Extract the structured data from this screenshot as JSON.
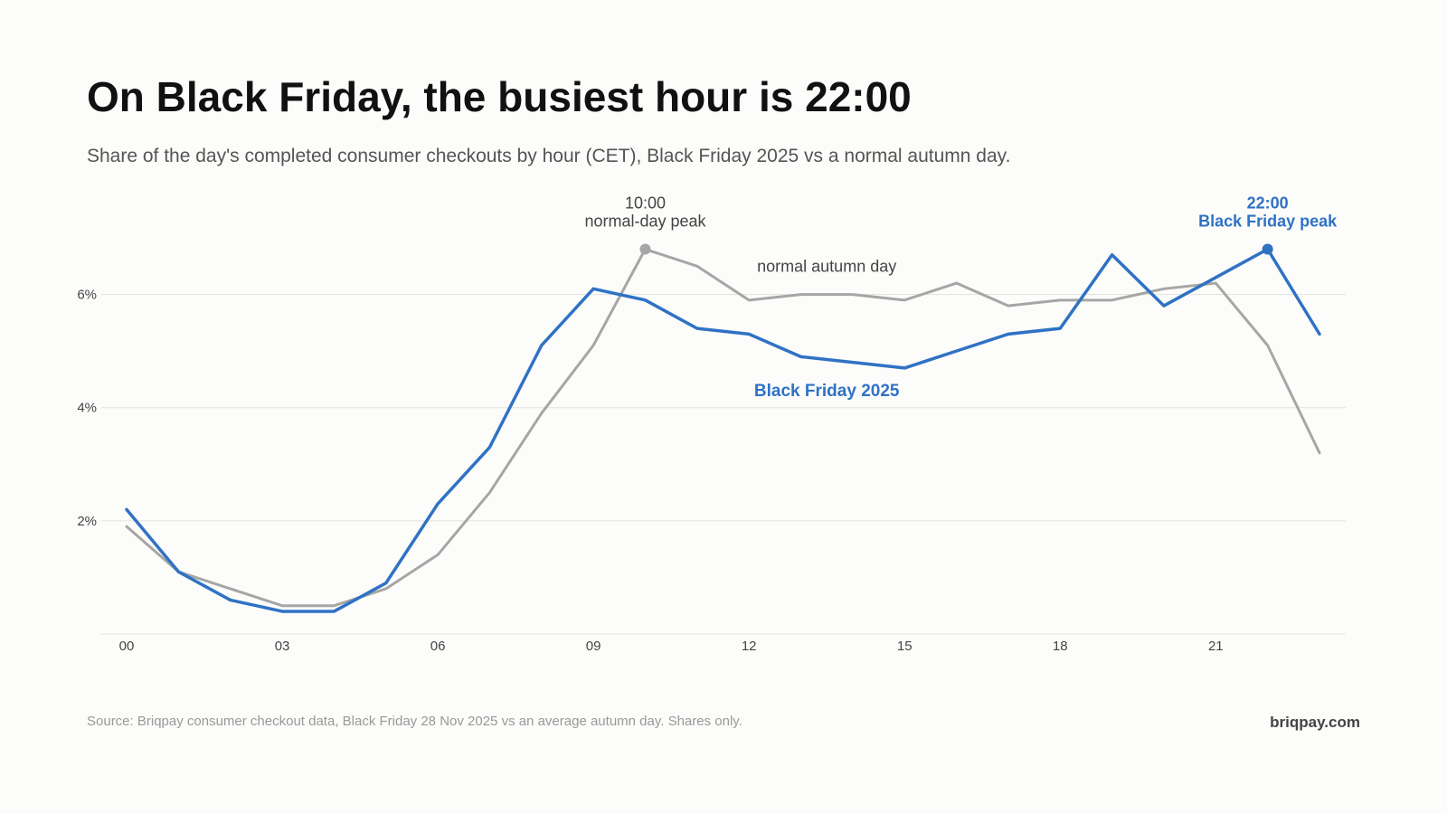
{
  "header": {
    "title": "On Black Friday, the busiest hour is 22:00",
    "subtitle": "Share of the day's completed consumer checkouts by hour (CET), Black Friday 2025 vs a normal autumn day."
  },
  "footer": {
    "source": "Source: Briqpay consumer checkout data, Black Friday 28 Nov 2025 vs an average autumn day. Shares only.",
    "brand": "briqpay.com"
  },
  "chart_data": {
    "type": "line",
    "title": "On Black Friday, the busiest hour is 22:00",
    "subtitle": "Share of the day's completed consumer checkouts by hour (CET), Black Friday 2025 vs a normal autumn day.",
    "xlabel": "",
    "ylabel": "",
    "x": [
      0,
      1,
      2,
      3,
      4,
      5,
      6,
      7,
      8,
      9,
      10,
      11,
      12,
      13,
      14,
      15,
      16,
      17,
      18,
      19,
      20,
      21,
      22,
      23
    ],
    "xlim": [
      0,
      23
    ],
    "ylim": [
      0,
      7
    ],
    "x_ticks": [
      0,
      3,
      6,
      9,
      12,
      15,
      18,
      21
    ],
    "x_tick_labels": [
      "00",
      "03",
      "06",
      "09",
      "12",
      "15",
      "18",
      "21"
    ],
    "y_ticks": [
      2,
      4,
      6
    ],
    "y_tick_labels": [
      "2%",
      "4%",
      "6%"
    ],
    "grid": "horizontal",
    "legend": "inline labels",
    "series": [
      {
        "name": "normal autumn day",
        "color": "#a6a6a6",
        "values": [
          1.9,
          1.1,
          0.8,
          0.5,
          0.5,
          0.8,
          1.4,
          2.5,
          3.9,
          5.1,
          6.8,
          6.5,
          5.9,
          6.0,
          6.0,
          5.9,
          6.2,
          5.8,
          5.9,
          5.9,
          6.1,
          6.2,
          5.1,
          3.2
        ]
      },
      {
        "name": "Black Friday 2025",
        "color": "#2f72c4",
        "values": [
          2.2,
          1.1,
          0.6,
          0.4,
          0.4,
          0.9,
          2.3,
          3.3,
          5.1,
          6.1,
          5.9,
          5.4,
          5.3,
          4.9,
          4.8,
          4.7,
          5.0,
          5.3,
          5.4,
          6.7,
          5.8,
          6.3,
          6.8,
          5.3
        ]
      }
    ],
    "series_labels": [
      {
        "series": 0,
        "text": "normal autumn day",
        "x": 13.5,
        "y": 6.4,
        "color": "#444444",
        "bold": false
      },
      {
        "series": 1,
        "text": "Black Friday 2025",
        "x": 13.5,
        "y": 4.2,
        "color": "#2f72c4",
        "bold": true
      }
    ],
    "annotations": [
      {
        "series": 0,
        "x": 10,
        "y": 6.8,
        "lines": [
          "10:00",
          "normal-day peak"
        ],
        "color": "#444444",
        "marker_color": "#a6a6a6",
        "bold": false
      },
      {
        "series": 1,
        "x": 22,
        "y": 6.8,
        "lines": [
          "22:00",
          "Black Friday peak"
        ],
        "color": "#2f72c4",
        "marker_color": "#2f72c4",
        "bold": true
      }
    ]
  }
}
